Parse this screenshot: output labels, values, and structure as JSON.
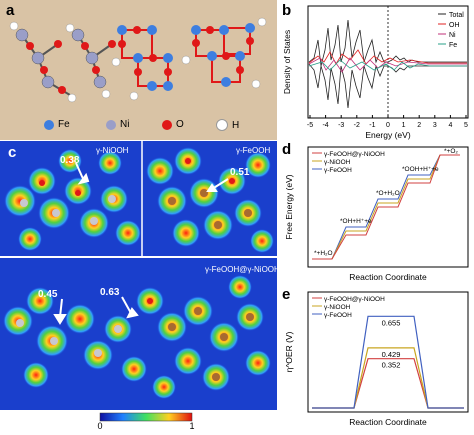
{
  "panel_labels": {
    "a": "a",
    "b": "b",
    "c": "c",
    "d": "d",
    "e": "e"
  },
  "panel_a": {
    "legend": [
      {
        "label": "Fe",
        "color": "#3d7ee0"
      },
      {
        "label": "Ni",
        "color": "#9a9ec8"
      },
      {
        "label": "O",
        "color": "#e01818"
      },
      {
        "label": "H",
        "color": "#ffffff"
      }
    ]
  },
  "panel_b": {
    "chart_data": {
      "type": "line",
      "xlabel": "Energy (eV)",
      "ylabel": "Density of States",
      "xlim": [
        -5,
        5
      ],
      "xticks": [
        "-5",
        "-4",
        "-3",
        "-2",
        "-1",
        "0",
        "1",
        "2",
        "3",
        "4",
        "5"
      ],
      "series": [
        {
          "name": "Total",
          "color": "#222222"
        },
        {
          "name": "OH",
          "color": "#e02020"
        },
        {
          "name": "Ni",
          "color": "#c0307a"
        },
        {
          "name": "Fe",
          "color": "#2aa08a"
        }
      ]
    }
  },
  "panel_c": {
    "labels": {
      "nio": "γ-NiOOH",
      "feo": "γ-FeOOH",
      "het": "γ-FeOOH@γ-NiOOH"
    },
    "values": {
      "v1": "0.38",
      "v2": "0.51",
      "v3": "0.45",
      "v4": "0.63"
    },
    "colorbar": {
      "min": "0",
      "max": "1"
    }
  },
  "panel_d": {
    "chart_data": {
      "type": "line",
      "xlabel": "Reaction Coordinate",
      "ylabel": "Free Energy (eV)",
      "series": [
        {
          "name": "γ-FeOOH@γ-NiOOH",
          "color": "#d24040"
        },
        {
          "name": "γ-NiOOH",
          "color": "#c9a520"
        },
        {
          "name": "γ-FeOOH",
          "color": "#4060c0"
        }
      ],
      "annotations": [
        "*+H₂O",
        "*OH+H⁺+e",
        "*O+H₂O",
        "*OOH+H⁺+e",
        "*+O₂"
      ]
    }
  },
  "panel_e": {
    "chart_data": {
      "type": "line",
      "xlabel": "Reaction Coordinate",
      "ylabel": "η^OER (V)",
      "series": [
        {
          "name": "γ-FeOOH@γ-NiOOH",
          "value": 0.352,
          "label": "0.352",
          "color": "#d24040"
        },
        {
          "name": "γ-NiOOH",
          "value": 0.429,
          "label": "0.429",
          "color": "#c9a520"
        },
        {
          "name": "γ-FeOOH",
          "value": 0.655,
          "label": "0.655",
          "color": "#4060c0"
        }
      ]
    }
  }
}
